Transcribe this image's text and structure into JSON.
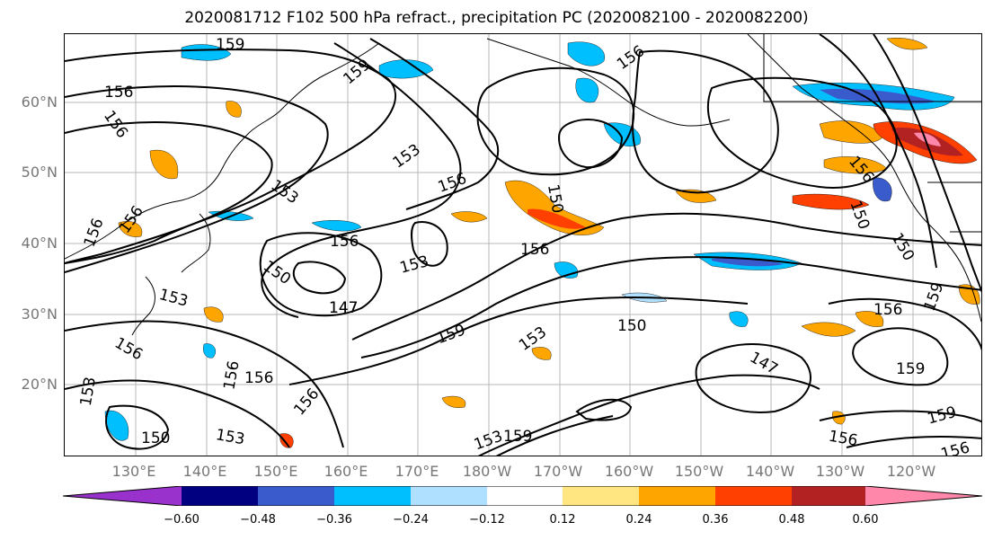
{
  "title": "2020081712 F102 500 hPa refract., precipitation PC (2020082100 - 2020082200)",
  "latitude_labels": [
    "60°N",
    "50°N",
    "40°N",
    "30°N",
    "20°N"
  ],
  "longitude_labels": [
    "130°E",
    "140°E",
    "150°E",
    "160°E",
    "170°E",
    "180°W",
    "170°W",
    "160°W",
    "150°W",
    "140°W",
    "130°W",
    "120°W"
  ],
  "contour_labels": [
    "159",
    "156",
    "156",
    "153",
    "156",
    "147",
    "159",
    "153",
    "156",
    "156",
    "150",
    "153",
    "147",
    "159",
    "150",
    "153",
    "150",
    "156",
    "147",
    "156",
    "156",
    "153",
    "156",
    "159",
    "153",
    "153",
    "156",
    "156",
    "150",
    "150",
    "156",
    "159",
    "159",
    "156",
    "156",
    "156",
    "153",
    "159",
    "156",
    "150"
  ],
  "colorbar": {
    "tick_labels": [
      "−0.60",
      "−0.48",
      "−0.36",
      "−0.24",
      "−0.12",
      "0.12",
      "0.24",
      "0.36",
      "0.48",
      "0.60"
    ],
    "colors": [
      "#9932CC",
      "#000080",
      "#3A5BCC",
      "#00BFFF",
      "#B0E0FF",
      "#FFFFFF",
      "#FFE680",
      "#FFA500",
      "#FF4000",
      "#B22222",
      "#FF88AA"
    ]
  }
}
